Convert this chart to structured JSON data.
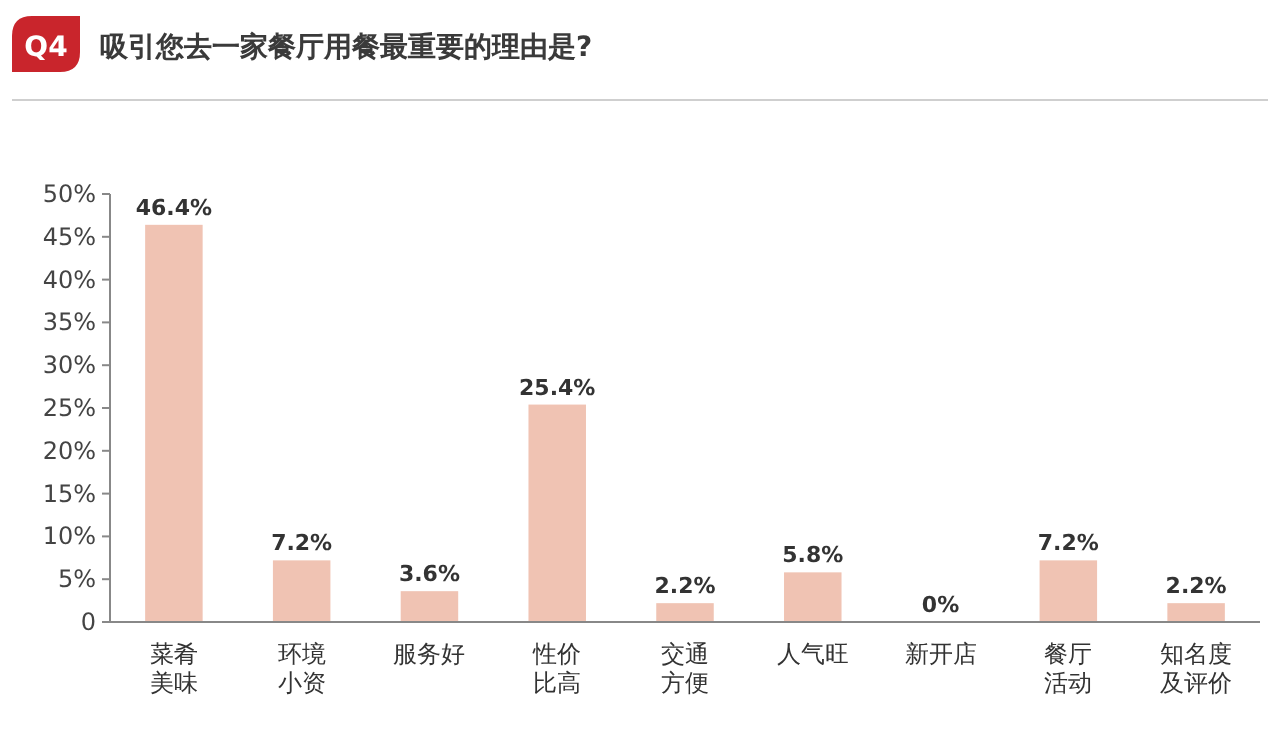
{
  "chart_data": {
    "type": "bar",
    "title": "吸引您去一家餐厅用餐最重要的理由是?",
    "annotations": [
      "Q4"
    ],
    "categories": [
      "菜肴美味",
      "环境小资",
      "服务好",
      "性价比高",
      "交通方便",
      "人气旺",
      "新开店",
      "餐厅活动",
      "知名度及评价"
    ],
    "values": [
      46.4,
      7.2,
      3.6,
      25.4,
      2.2,
      5.8,
      0,
      7.2,
      2.2
    ],
    "value_labels": [
      "46.4%",
      "7.2%",
      "3.6%",
      "25.4%",
      "2.2%",
      "5.8%",
      "0%",
      "7.2%",
      "2.2%"
    ],
    "color": "#f0c3b3",
    "ylim": [
      0,
      50
    ],
    "yticks": [
      {
        "value": 0,
        "label": "0"
      },
      {
        "value": 5,
        "label": "5%"
      },
      {
        "value": 10,
        "label": "10%"
      },
      {
        "value": 15,
        "label": "15%"
      },
      {
        "value": 20,
        "label": "20%"
      },
      {
        "value": 25,
        "label": "25%"
      },
      {
        "value": 30,
        "label": "30%"
      },
      {
        "value": 35,
        "label": "35%"
      },
      {
        "value": 40,
        "label": "40%"
      },
      {
        "value": 45,
        "label": "45%"
      },
      {
        "value": 50,
        "label": "50%"
      }
    ],
    "grid": false
  }
}
